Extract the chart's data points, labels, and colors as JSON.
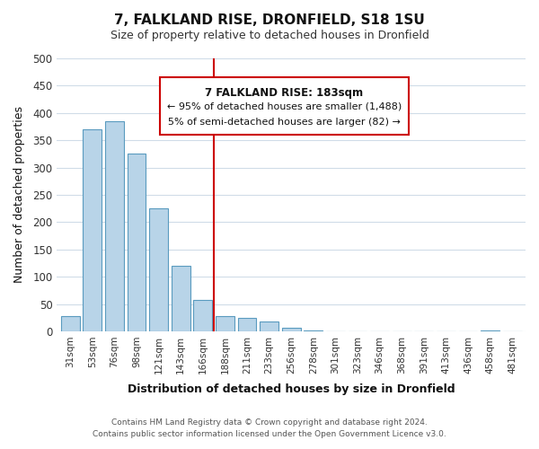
{
  "title": "7, FALKLAND RISE, DRONFIELD, S18 1SU",
  "subtitle": "Size of property relative to detached houses in Dronfield",
  "xlabel": "Distribution of detached houses by size in Dronfield",
  "ylabel": "Number of detached properties",
  "bar_labels": [
    "31sqm",
    "53sqm",
    "76sqm",
    "98sqm",
    "121sqm",
    "143sqm",
    "166sqm",
    "188sqm",
    "211sqm",
    "233sqm",
    "256sqm",
    "278sqm",
    "301sqm",
    "323sqm",
    "346sqm",
    "368sqm",
    "391sqm",
    "413sqm",
    "436sqm",
    "458sqm",
    "481sqm"
  ],
  "bar_values": [
    28,
    370,
    385,
    325,
    225,
    120,
    58,
    28,
    25,
    18,
    6,
    1,
    0,
    0,
    0,
    0,
    0,
    0,
    0,
    2,
    0
  ],
  "bar_color": "#b8d4e8",
  "bar_edge_color": "#5a9bbf",
  "highlight_index": 7,
  "highlight_color": "#cc0000",
  "ylim": [
    0,
    500
  ],
  "yticks": [
    0,
    50,
    100,
    150,
    200,
    250,
    300,
    350,
    400,
    450,
    500
  ],
  "annotation_title": "7 FALKLAND RISE: 183sqm",
  "annotation_line1": "← 95% of detached houses are smaller (1,488)",
  "annotation_line2": "5% of semi-detached houses are larger (82) →",
  "footer_line1": "Contains HM Land Registry data © Crown copyright and database right 2024.",
  "footer_line2": "Contains public sector information licensed under the Open Government Licence v3.0.",
  "background_color": "#ffffff",
  "grid_color": "#d0dce8"
}
